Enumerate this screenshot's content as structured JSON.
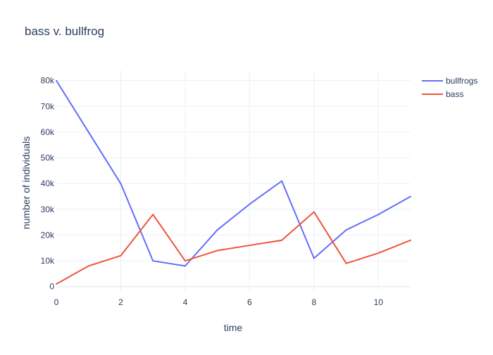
{
  "chart_data": {
    "type": "line",
    "title": "bass v. bullfrog",
    "xlabel": "time",
    "ylabel": "number of individuals",
    "xlim": [
      0,
      11
    ],
    "ylim": [
      -2000,
      84000
    ],
    "x_ticks": [
      0,
      2,
      4,
      6,
      8,
      10
    ],
    "x_tick_labels": [
      "0",
      "2",
      "4",
      "6",
      "8",
      "10"
    ],
    "y_ticks": [
      0,
      10000,
      20000,
      30000,
      40000,
      50000,
      60000,
      70000,
      80000
    ],
    "y_tick_labels": [
      "0",
      "10k",
      "20k",
      "30k",
      "40k",
      "50k",
      "60k",
      "70k",
      "80k"
    ],
    "grid": true,
    "legend_position": "top-right",
    "x": [
      0,
      1,
      2,
      3,
      4,
      5,
      6,
      7,
      8,
      9,
      10,
      11
    ],
    "series": [
      {
        "name": "bullfrogs",
        "color": "#636efa",
        "values": [
          80000,
          60000,
          40000,
          10000,
          8000,
          22000,
          32000,
          41000,
          11000,
          22000,
          28000,
          35000
        ]
      },
      {
        "name": "bass",
        "color": "#ef553b",
        "values": [
          1000,
          8000,
          12000,
          28000,
          10000,
          14000,
          16000,
          18000,
          29000,
          9000,
          13000,
          18000
        ]
      }
    ]
  }
}
